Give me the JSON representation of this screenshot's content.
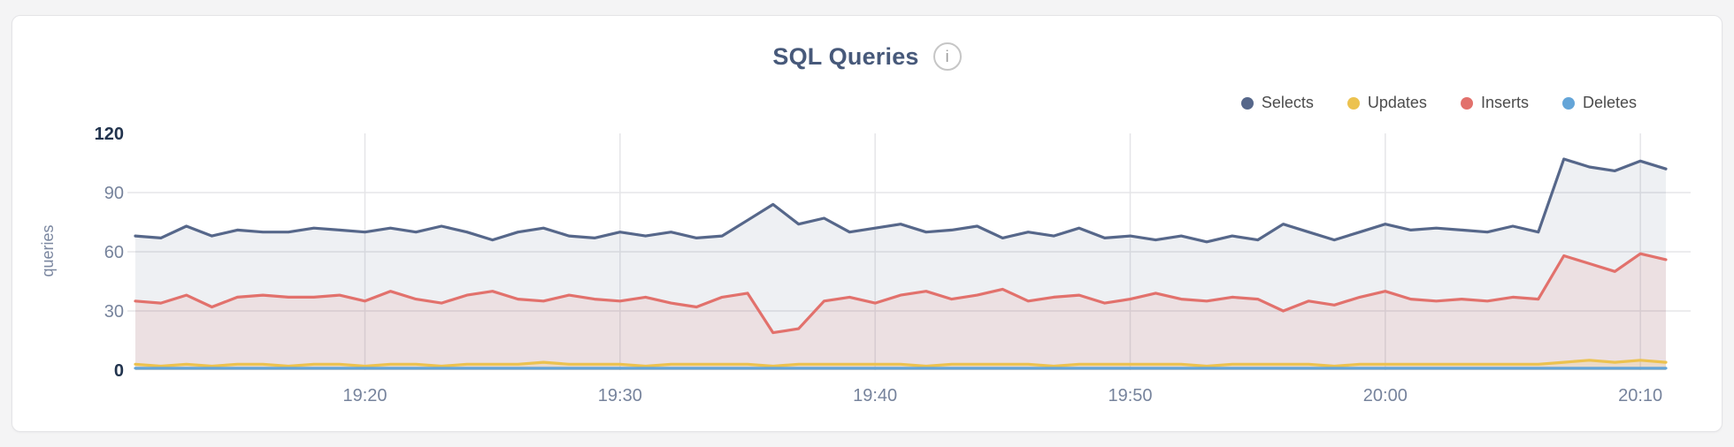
{
  "card": {
    "info_icon": "i"
  },
  "axis": {
    "tick_color": "#76839c",
    "tick_strong_color": "#22344e",
    "grid_color": "#e5e5e8"
  },
  "chart_data": {
    "type": "area",
    "title": "SQL Queries",
    "xlabel": "",
    "ylabel": "queries",
    "ylim": [
      0,
      120
    ],
    "yticks": [
      0,
      30,
      60,
      90,
      120
    ],
    "grid": true,
    "legend_position": "top-right",
    "x": [
      "19:11",
      "19:12",
      "19:13",
      "19:14",
      "19:15",
      "19:16",
      "19:17",
      "19:18",
      "19:19",
      "19:20",
      "19:21",
      "19:22",
      "19:23",
      "19:24",
      "19:25",
      "19:26",
      "19:27",
      "19:28",
      "19:29",
      "19:30",
      "19:31",
      "19:32",
      "19:33",
      "19:34",
      "19:35",
      "19:36",
      "19:37",
      "19:38",
      "19:39",
      "19:40",
      "19:41",
      "19:42",
      "19:43",
      "19:44",
      "19:45",
      "19:46",
      "19:47",
      "19:48",
      "19:49",
      "19:50",
      "19:51",
      "19:52",
      "19:53",
      "19:54",
      "19:55",
      "19:56",
      "19:57",
      "19:58",
      "19:59",
      "20:00",
      "20:01",
      "20:02",
      "20:03",
      "20:04",
      "20:05",
      "20:06",
      "20:07",
      "20:08",
      "20:09",
      "20:10",
      "20:11"
    ],
    "xticks": [
      "19:20",
      "19:30",
      "19:40",
      "19:50",
      "20:00",
      "20:10"
    ],
    "series": [
      {
        "name": "Selects",
        "color": "#56678a",
        "values": [
          68,
          67,
          73,
          68,
          71,
          70,
          70,
          72,
          71,
          70,
          72,
          70,
          73,
          70,
          66,
          70,
          72,
          68,
          67,
          70,
          68,
          70,
          67,
          68,
          76,
          84,
          74,
          77,
          70,
          72,
          74,
          70,
          71,
          73,
          67,
          70,
          68,
          72,
          67,
          68,
          66,
          68,
          65,
          68,
          66,
          74,
          70,
          66,
          70,
          74,
          71,
          72,
          71,
          70,
          73,
          70,
          107,
          103,
          101,
          106,
          102
        ]
      },
      {
        "name": "Updates",
        "color": "#ecc24f",
        "values": [
          3,
          2,
          3,
          2,
          3,
          3,
          2,
          3,
          3,
          2,
          3,
          3,
          2,
          3,
          3,
          3,
          4,
          3,
          3,
          3,
          2,
          3,
          3,
          3,
          3,
          2,
          3,
          3,
          3,
          3,
          3,
          2,
          3,
          3,
          3,
          3,
          2,
          3,
          3,
          3,
          3,
          3,
          2,
          3,
          3,
          3,
          3,
          2,
          3,
          3,
          3,
          3,
          3,
          3,
          3,
          3,
          4,
          5,
          4,
          5,
          4
        ]
      },
      {
        "name": "Inserts",
        "color": "#e2716c",
        "values": [
          35,
          34,
          38,
          32,
          37,
          38,
          37,
          37,
          38,
          35,
          40,
          36,
          34,
          38,
          40,
          36,
          35,
          38,
          36,
          35,
          37,
          34,
          32,
          37,
          39,
          19,
          21,
          35,
          37,
          34,
          38,
          40,
          36,
          38,
          41,
          35,
          37,
          38,
          34,
          36,
          39,
          36,
          35,
          37,
          36,
          30,
          35,
          33,
          37,
          40,
          36,
          35,
          36,
          35,
          37,
          36,
          58,
          54,
          50,
          59,
          56
        ]
      },
      {
        "name": "Deletes",
        "color": "#64a5d8",
        "values": [
          1,
          1,
          1,
          1,
          1,
          1,
          1,
          1,
          1,
          1,
          1,
          1,
          1,
          1,
          1,
          1,
          1,
          1,
          1,
          1,
          1,
          1,
          1,
          1,
          1,
          1,
          1,
          1,
          1,
          1,
          1,
          1,
          1,
          1,
          1,
          1,
          1,
          1,
          1,
          1,
          1,
          1,
          1,
          1,
          1,
          1,
          1,
          1,
          1,
          1,
          1,
          1,
          1,
          1,
          1,
          1,
          1,
          1,
          1,
          1,
          1
        ]
      }
    ]
  }
}
